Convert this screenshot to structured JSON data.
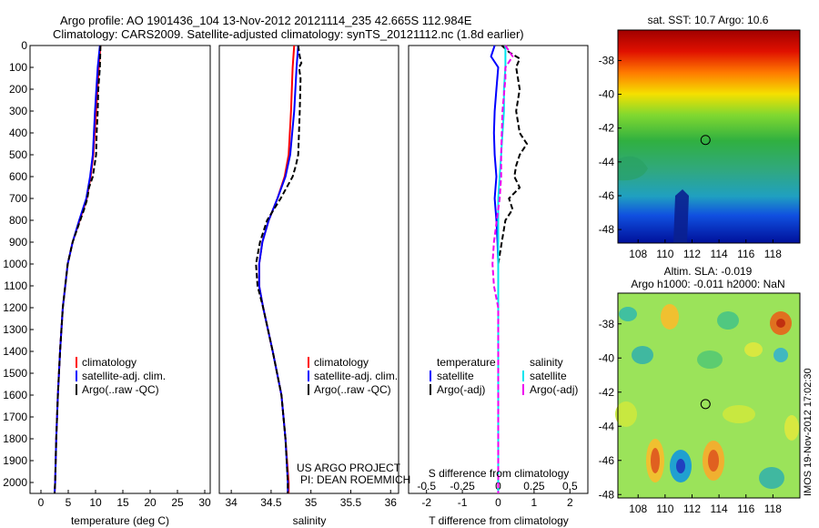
{
  "header": {
    "line1": "Argo profile: AO 1901436_104 13-Nov-2012 20121114_235 42.665S 112.984E",
    "line2": "Climatology: CARS2009. Satellite-adjusted climatology: synTS_20121112.nc (1.8d earlier)"
  },
  "credits": {
    "project": "US ARGO PROJECT",
    "pi": "PI: DEAN ROEMMICH"
  },
  "watermark": "IMOS 19-Nov-2012 17:02:30",
  "colors": {
    "climatology": "#ff0000",
    "satellite": "#0000ff",
    "argo": "#000000",
    "sat_salinity": "#00e5ee",
    "argo_salinity": "#ee00ee"
  },
  "chart_data": [
    {
      "type": "line",
      "xlabel": "temperature (deg C)",
      "ylabel": "",
      "xlim": [
        -2,
        31
      ],
      "ylim": [
        2050,
        0
      ],
      "xticks": [
        "0",
        "5",
        "10",
        "15",
        "20",
        "25",
        "30"
      ],
      "yticks": [
        "0",
        "100",
        "200",
        "300",
        "400",
        "500",
        "600",
        "700",
        "800",
        "900",
        "1000",
        "1100",
        "1200",
        "1300",
        "1400",
        "1500",
        "1600",
        "1700",
        "1800",
        "1900",
        "2000"
      ],
      "legend": {
        "position": "bottom-center",
        "entries": [
          "climatology",
          "satellite-adj. clim.",
          "Argo(..raw -QC)"
        ]
      },
      "series": [
        {
          "name": "climatology",
          "depth": [
            0,
            100,
            300,
            500,
            600,
            700,
            800,
            900,
            1000,
            1200,
            1400,
            1600,
            1800,
            2000,
            2050
          ],
          "values": [
            10.9,
            10.6,
            10.1,
            9.6,
            9.1,
            8.4,
            7.1,
            5.8,
            4.9,
            4.0,
            3.5,
            3.1,
            2.8,
            2.6,
            2.5
          ]
        },
        {
          "name": "satellite-adj. clim.",
          "depth": [
            0,
            100,
            300,
            500,
            600,
            700,
            800,
            900,
            1000,
            1200,
            1400,
            1600,
            1800,
            2000,
            2050
          ],
          "values": [
            10.8,
            10.4,
            9.9,
            9.5,
            9.0,
            8.3,
            7.0,
            5.8,
            4.9,
            4.0,
            3.5,
            3.1,
            2.8,
            2.6,
            2.5
          ]
        },
        {
          "name": "Argo(..raw -QC)",
          "depth": [
            0,
            100,
            200,
            300,
            400,
            500,
            550,
            600,
            650,
            700,
            750,
            800,
            900,
            1000,
            1200,
            1400,
            1600,
            1800,
            2000,
            2050
          ],
          "values": [
            10.9,
            10.8,
            10.5,
            10.4,
            10.2,
            10.1,
            9.8,
            9.5,
            8.8,
            8.5,
            7.9,
            7.2,
            5.8,
            4.9,
            4.0,
            3.5,
            3.1,
            2.8,
            2.6,
            2.5
          ]
        }
      ]
    },
    {
      "type": "line",
      "xlabel": "salinity",
      "ylabel": "",
      "xlim": [
        33.85,
        36.1
      ],
      "ylim": [
        2050,
        0
      ],
      "xticks": [
        "34",
        "34.5",
        "35",
        "35.5",
        "36"
      ],
      "legend": {
        "position": "bottom-center",
        "entries": [
          "climatology",
          "satellite-adj. clim.",
          "Argo(..raw -QC)"
        ]
      },
      "series": [
        {
          "name": "climatology",
          "depth": [
            0,
            100,
            300,
            500,
            600,
            700,
            800,
            900,
            1000,
            1100,
            1200,
            1400,
            1600,
            1800,
            2000,
            2050
          ],
          "values": [
            34.79,
            34.77,
            34.75,
            34.72,
            34.67,
            34.58,
            34.47,
            34.39,
            34.35,
            34.35,
            34.4,
            34.52,
            34.63,
            34.68,
            34.72,
            34.72
          ]
        },
        {
          "name": "satellite-adj. clim.",
          "depth": [
            0,
            100,
            300,
            500,
            600,
            700,
            800,
            900,
            1000,
            1100,
            1200,
            1400,
            1600,
            1800,
            2000,
            2050
          ],
          "values": [
            34.84,
            34.82,
            34.79,
            34.74,
            34.68,
            34.58,
            34.47,
            34.39,
            34.35,
            34.35,
            34.4,
            34.52,
            34.63,
            34.68,
            34.71,
            34.71
          ]
        },
        {
          "name": "Argo(..raw -QC)",
          "depth": [
            0,
            50,
            80,
            100,
            150,
            300,
            500,
            550,
            600,
            700,
            800,
            900,
            1000,
            1100,
            1200,
            1400,
            1600,
            1800,
            2000,
            2050
          ],
          "values": [
            34.84,
            34.86,
            34.88,
            34.85,
            34.87,
            34.86,
            34.84,
            34.81,
            34.77,
            34.62,
            34.45,
            34.36,
            34.31,
            34.33,
            34.4,
            34.52,
            34.63,
            34.68,
            34.71,
            34.71
          ]
        }
      ]
    },
    {
      "type": "line",
      "xlabel": "T difference from climatology",
      "xlabel2": "S difference from climatology",
      "xlim": [
        -2.5,
        2.5
      ],
      "x2lim": [
        -0.625,
        0.625
      ],
      "ylim": [
        2050,
        0
      ],
      "xticks": [
        "-2",
        "-1",
        "0",
        "1",
        "2"
      ],
      "x2ticks": [
        "-0.5",
        "-0.25",
        "0",
        "0.25",
        "0.5"
      ],
      "legend": {
        "position": "bottom",
        "temperature_title": "temperature",
        "salinity_title": "salinity",
        "entries": [
          "satellite",
          "Argo(-adj)",
          "satellite",
          "Argo(-adj)"
        ]
      },
      "series": [
        {
          "name": "satellite",
          "group": "temperature",
          "depth": [
            0,
            50,
            100,
            200,
            300,
            400,
            500,
            600,
            700,
            800,
            900,
            1000,
            1200,
            1400,
            1600,
            1800,
            2000,
            2050
          ],
          "values": [
            -0.1,
            -0.2,
            0.0,
            -0.05,
            -0.1,
            -0.12,
            -0.1,
            -0.05,
            -0.1,
            -0.05,
            -0.02,
            0.0,
            0.0,
            0.0,
            0.0,
            0.0,
            0.0,
            0.0
          ]
        },
        {
          "name": "Argo(-adj)",
          "group": "temperature",
          "depth": [
            0,
            30,
            60,
            100,
            200,
            300,
            400,
            450,
            500,
            550,
            600,
            650,
            700,
            750,
            800,
            900,
            1000,
            1200,
            1400,
            1600,
            1800,
            2000,
            2050
          ],
          "values": [
            0.1,
            0.3,
            0.6,
            0.5,
            0.6,
            0.5,
            0.6,
            0.8,
            0.6,
            0.5,
            0.45,
            0.6,
            0.3,
            0.4,
            0.2,
            0.1,
            0.0,
            0.0,
            0.0,
            0.0,
            0.0,
            0.0,
            0.0
          ]
        },
        {
          "name": "satellite",
          "group": "salinity",
          "depth": [
            0,
            100,
            200,
            300,
            400,
            500,
            600,
            700,
            800,
            900,
            1000,
            1200,
            1400,
            1600,
            1800,
            2000,
            2050
          ],
          "values": [
            0.05,
            0.05,
            0.04,
            0.04,
            0.03,
            0.02,
            0.01,
            0.0,
            0.0,
            0.0,
            0.0,
            0.0,
            0.0,
            0.0,
            0.0,
            0.0,
            0.0
          ]
        },
        {
          "name": "Argo(-adj)",
          "group": "salinity",
          "depth": [
            0,
            50,
            100,
            150,
            300,
            500,
            600,
            700,
            800,
            900,
            1000,
            1100,
            1200,
            1400,
            1600,
            1800,
            2000,
            2050
          ],
          "values": [
            0.05,
            0.1,
            0.05,
            0.05,
            0.03,
            0.02,
            0.02,
            0.01,
            -0.01,
            -0.03,
            -0.04,
            -0.03,
            0.0,
            0.0,
            0.0,
            0.0,
            0.0,
            0.0
          ]
        }
      ]
    },
    {
      "type": "heatmap",
      "title": "sat. SST: 10.7  Argo: 10.6",
      "xticks": [
        "108",
        "110",
        "112",
        "114",
        "116",
        "118"
      ],
      "yticks": [
        "-38",
        "-40",
        "-42",
        "-44",
        "-46",
        "-48"
      ],
      "xlim": [
        106.5,
        120
      ],
      "ylim": [
        -48.8,
        -36.2
      ],
      "marker": {
        "lon": 113.0,
        "lat": -42.7
      }
    },
    {
      "type": "heatmap",
      "title": "Altim. SLA: -0.019",
      "subtitle": "Argo h1000: -0.011 h2000: NaN",
      "xticks": [
        "108",
        "110",
        "112",
        "114",
        "116",
        "118"
      ],
      "yticks": [
        "-38",
        "-40",
        "-42",
        "-44",
        "-46",
        "-48"
      ],
      "xlim": [
        106.5,
        120
      ],
      "ylim": [
        -48.2,
        -36.2
      ],
      "marker": {
        "lon": 113.0,
        "lat": -42.7
      }
    }
  ]
}
